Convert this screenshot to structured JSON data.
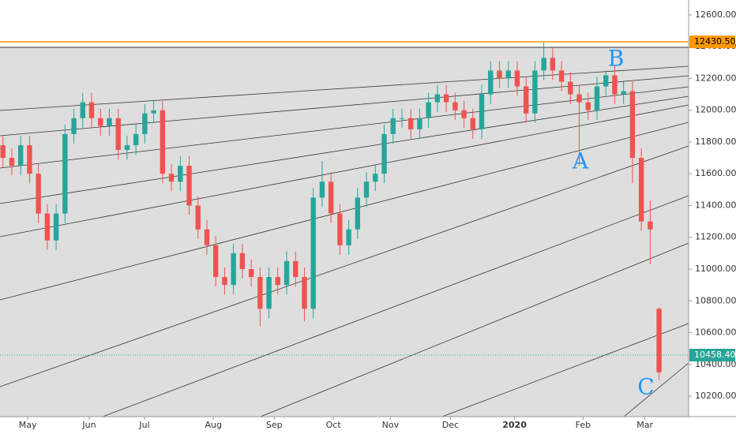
{
  "chart_data": {
    "type": "candlestick",
    "up_color": "#26a69a",
    "down_color": "#ef5350",
    "x": [
      1,
      4,
      7,
      10,
      13,
      16,
      19,
      22,
      25,
      28,
      31,
      34,
      37,
      40,
      43,
      46,
      49,
      52,
      55,
      58,
      61,
      64,
      67,
      70,
      73,
      76,
      79,
      82,
      85,
      88,
      91,
      94,
      97,
      100,
      103,
      106,
      109,
      112,
      115,
      118,
      121,
      124,
      127,
      130,
      133,
      136,
      139,
      142,
      145,
      148,
      151,
      154,
      157,
      160,
      163,
      166,
      169,
      172,
      175,
      178,
      181,
      184,
      187,
      190,
      193,
      196,
      199,
      202,
      205,
      208,
      211,
      214,
      217,
      220,
      223
    ],
    "open": [
      11780,
      11700,
      11650,
      11780,
      11600,
      11350,
      11180,
      11350,
      11850,
      11950,
      12050,
      11950,
      11900,
      11950,
      11750,
      11780,
      11850,
      11980,
      12000,
      11600,
      11550,
      11650,
      11400,
      11250,
      11150,
      10950,
      10900,
      11100,
      11000,
      10950,
      10750,
      10950,
      10900,
      11050,
      10950,
      10750,
      11450,
      11550,
      11350,
      11150,
      11250,
      11450,
      11550,
      11600,
      11850,
      11950,
      11950,
      11880,
      11950,
      12050,
      12100,
      12050,
      12000,
      11950,
      11880,
      12100,
      12250,
      12200,
      12250,
      12150,
      11980,
      12250,
      12330,
      12250,
      12180,
      12100,
      12050,
      12000,
      12150,
      12220,
      12100,
      12120,
      11700,
      11300,
      10750
    ],
    "high": [
      11840,
      11760,
      11840,
      11840,
      11660,
      11410,
      11410,
      11910,
      12010,
      12110,
      12110,
      12010,
      12010,
      12010,
      11840,
      11910,
      12040,
      12060,
      12060,
      11660,
      11710,
      11710,
      11460,
      11310,
      11210,
      11010,
      11160,
      11160,
      11060,
      11010,
      11010,
      11010,
      11110,
      11110,
      11010,
      11510,
      11680,
      11610,
      11410,
      11310,
      11510,
      11610,
      11660,
      11910,
      12010,
      12010,
      12010,
      12010,
      12110,
      12160,
      12160,
      12110,
      12060,
      12010,
      12160,
      12310,
      12310,
      12310,
      12310,
      12210,
      12310,
      12430,
      12390,
      12310,
      12240,
      12160,
      12110,
      12210,
      12250,
      12280,
      12180,
      12180,
      11760,
      11430,
      10760
    ],
    "low": [
      11640,
      11590,
      11590,
      11540,
      11290,
      11120,
      11120,
      11290,
      11790,
      11890,
      11890,
      11840,
      11840,
      11690,
      11690,
      11720,
      11790,
      11920,
      11540,
      11490,
      11490,
      11340,
      11190,
      11090,
      10890,
      10840,
      10840,
      10940,
      10890,
      10640,
      10690,
      10840,
      10840,
      10890,
      10670,
      10690,
      11390,
      11290,
      11090,
      11090,
      11190,
      11390,
      11490,
      11540,
      11790,
      11890,
      11820,
      11820,
      11890,
      11990,
      11990,
      11940,
      11890,
      11820,
      11820,
      12040,
      12140,
      12140,
      12090,
      11920,
      11920,
      12190,
      12190,
      12120,
      12040,
      11650,
      11940,
      11940,
      12090,
      12040,
      12040,
      11540,
      11240,
      11030,
      10300
    ],
    "close": [
      11700,
      11650,
      11780,
      11600,
      11350,
      11180,
      11350,
      11850,
      11950,
      12050,
      11950,
      11900,
      11950,
      11750,
      11780,
      11850,
      11980,
      12000,
      11600,
      11550,
      11650,
      11400,
      11250,
      11150,
      10950,
      10900,
      11100,
      11000,
      10950,
      10750,
      10950,
      10900,
      11050,
      10950,
      10750,
      11450,
      11550,
      11350,
      11150,
      11250,
      11450,
      11550,
      11600,
      11850,
      11950,
      11950,
      11880,
      11950,
      12050,
      12100,
      12050,
      12000,
      11950,
      11880,
      12100,
      12250,
      12200,
      12250,
      12150,
      11980,
      12250,
      12330,
      12250,
      12180,
      12100,
      12050,
      12000,
      12150,
      12220,
      12100,
      12120,
      11700,
      11300,
      11250,
      10350
    ],
    "xlim": [
      0,
      233
    ],
    "xticks": [
      {
        "value": 9.4,
        "label": "May"
      },
      {
        "value": 30.2,
        "label": "Jun"
      },
      {
        "value": 48.9,
        "label": "Jul"
      },
      {
        "value": 72.2,
        "label": "Aug"
      },
      {
        "value": 92.8,
        "label": "Sep"
      },
      {
        "value": 112.8,
        "label": "Oct"
      },
      {
        "value": 132.1,
        "label": "Nov"
      },
      {
        "value": 152.4,
        "label": "Dec"
      },
      {
        "value": 174.1,
        "label": "2020"
      },
      {
        "value": 197.3,
        "label": "Feb"
      },
      {
        "value": 218.2,
        "label": "Mar"
      }
    ],
    "ylim": [
      10071,
      12694
    ],
    "yticks": [
      {
        "value": 10200,
        "label": "10200.00"
      },
      {
        "value": 10400,
        "label": "10400.00"
      },
      {
        "value": 10600,
        "label": "10600.00"
      },
      {
        "value": 10800,
        "label": "10800.00"
      },
      {
        "value": 11000,
        "label": "11000.00"
      },
      {
        "value": 11200,
        "label": "11200.00"
      },
      {
        "value": 11400,
        "label": "11400.00"
      },
      {
        "value": 11600,
        "label": "11600.00"
      },
      {
        "value": 11800,
        "label": "11800.00"
      },
      {
        "value": 12000,
        "label": "12000.00"
      },
      {
        "value": 12200,
        "label": "12200.00"
      },
      {
        "value": 12400,
        "label": "12400.00"
      },
      {
        "value": 12600,
        "label": "12600.00"
      }
    ],
    "hlines": [
      {
        "value": 12430.5,
        "label": "12430.50",
        "color": "#ff9800",
        "style": "solid"
      },
      {
        "value": 10458.4,
        "label": "10458.40",
        "color": "#26a69a",
        "style": "dotted"
      }
    ],
    "annotations": [
      "A",
      "B",
      "C"
    ]
  }
}
